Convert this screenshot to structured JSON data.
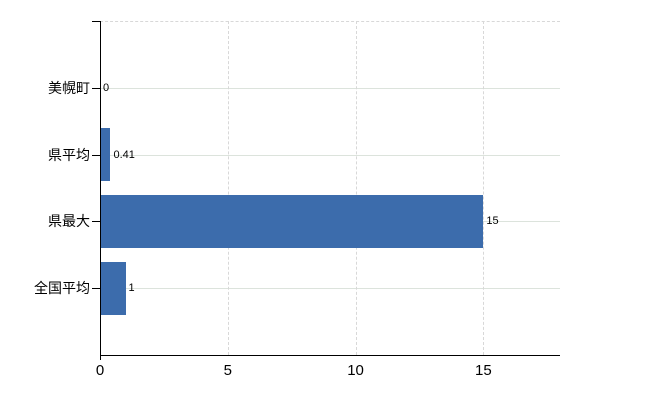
{
  "chart_data": {
    "type": "bar",
    "orientation": "horizontal",
    "title": "",
    "xlabel": "",
    "ylabel": "",
    "categories": [
      "美幌町",
      "県平均",
      "県最大",
      "全国平均"
    ],
    "values": [
      0,
      0.41,
      15,
      1
    ],
    "value_labels": [
      "0",
      "0.41",
      "15",
      "1"
    ],
    "x_ticks": [
      0,
      5,
      10,
      15
    ],
    "x_tick_labels": [
      "0",
      "5",
      "10",
      "15"
    ],
    "xlim": [
      0,
      18
    ],
    "legend": "none",
    "grid": {
      "horizontal_lines": "solid, one per category",
      "vertical_lines": "dashed, at x ticks 5/10/15",
      "plot_top_border": "dashed"
    },
    "colors": {
      "bar": "#3c6cac",
      "grid_horizontal": "#dce3dc",
      "grid_vertical": "#d8d8d8",
      "axis": "#000000",
      "text": "#000000",
      "background": "#ffffff"
    }
  }
}
